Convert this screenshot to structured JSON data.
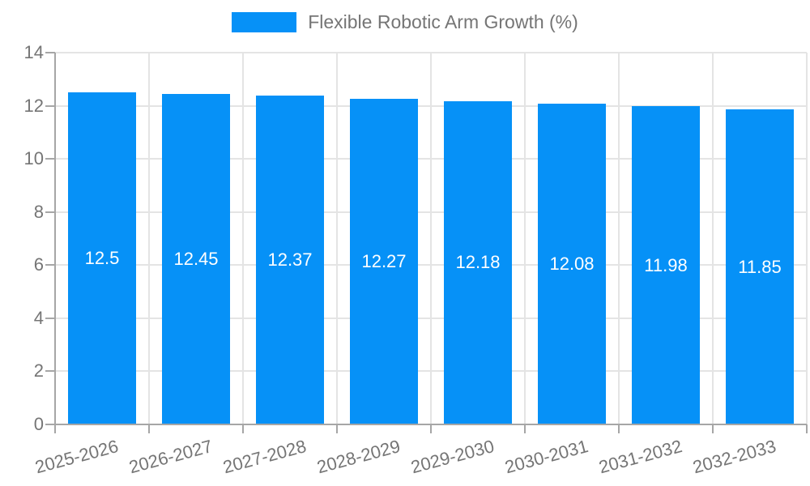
{
  "chart_data": {
    "type": "bar",
    "title": "Flexible Robotic Arm Growth (%)",
    "categories": [
      "2025-2026",
      "2026-2027",
      "2027-2028",
      "2028-2029",
      "2029-2030",
      "2030-2031",
      "2031-2032",
      "2032-2033"
    ],
    "values": [
      12.5,
      12.45,
      12.37,
      12.27,
      12.18,
      12.08,
      11.98,
      11.85
    ],
    "value_labels": [
      "12.5",
      "12.45",
      "12.37",
      "12.27",
      "12.18",
      "12.08",
      "11.98",
      "11.85"
    ],
    "xlabel": "",
    "ylabel": "",
    "ylim": [
      0,
      14
    ],
    "yticks": [
      0,
      2,
      4,
      6,
      8,
      10,
      12,
      14
    ],
    "grid": true,
    "legend_position": "top-center",
    "colors": {
      "bar": "#0691f7",
      "grid": "#e4e4e4",
      "axis": "#a6a6a6",
      "tick_text": "#757575",
      "value_text": "#ffffff",
      "background": "#ffffff"
    }
  }
}
